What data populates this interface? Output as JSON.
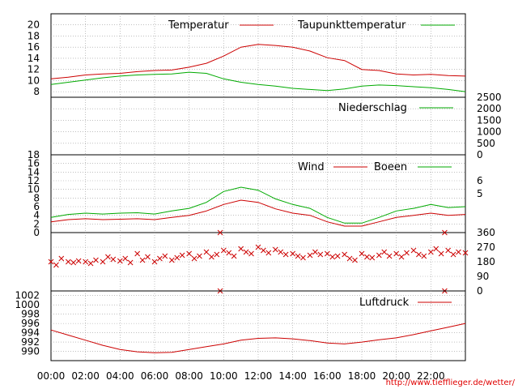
{
  "colors": {
    "primary": "#cc0000",
    "secondary": "#00aa00",
    "grid": "#999999",
    "frame": "#000000"
  },
  "x_tick_labels": [
    "00:00",
    "02:00",
    "04:00",
    "06:00",
    "08:00",
    "10:00",
    "12:00",
    "14:00",
    "16:00",
    "18:00",
    "20:00",
    "22:00"
  ],
  "url": "http://www.tiefflieger.de/wetter/",
  "chart_data": [
    {
      "type": "line",
      "x_range_hours": [
        0,
        24
      ],
      "ylim": [
        7,
        22
      ],
      "y_ticks": [
        8,
        10,
        12,
        14,
        16,
        18,
        20
      ],
      "grid": true,
      "legend": "top",
      "series": [
        {
          "name": "Temperatur",
          "color": "#cc0000",
          "x": [
            0,
            1,
            2,
            3,
            4,
            5,
            6,
            7,
            8,
            9,
            10,
            11,
            12,
            13,
            14,
            15,
            16,
            17,
            18,
            19,
            20,
            21,
            22,
            23,
            24
          ],
          "values": [
            10.3,
            10.6,
            11.0,
            11.2,
            11.3,
            11.6,
            11.8,
            11.9,
            12.4,
            13.1,
            14.4,
            16.0,
            16.5,
            16.3,
            16.0,
            15.3,
            14.1,
            13.6,
            12.0,
            11.8,
            11.2,
            11.0,
            11.1,
            10.9,
            10.8
          ]
        },
        {
          "name": "Taupunkttemperatur",
          "color": "#00aa00",
          "x": [
            0,
            1,
            2,
            3,
            4,
            5,
            6,
            7,
            8,
            9,
            10,
            11,
            12,
            13,
            14,
            15,
            16,
            17,
            18,
            19,
            20,
            21,
            22,
            23,
            24
          ],
          "values": [
            9.3,
            9.7,
            10.1,
            10.5,
            10.8,
            11.0,
            11.1,
            11.2,
            11.5,
            11.3,
            10.3,
            9.7,
            9.3,
            9.0,
            8.6,
            8.4,
            8.2,
            8.5,
            9.0,
            9.2,
            9.1,
            8.9,
            8.7,
            8.4,
            8.0
          ]
        }
      ]
    },
    {
      "type": "line",
      "x_range_hours": [
        0,
        24
      ],
      "ylim": [
        0,
        2500
      ],
      "y_ticks": [
        0,
        500,
        1000,
        1500,
        2000,
        2500
      ],
      "grid": true,
      "legend": "top-right",
      "series": [
        {
          "name": "Niederschlag",
          "color": "#00aa00",
          "x": [
            0,
            24
          ],
          "values": [
            0,
            0
          ]
        }
      ]
    },
    {
      "type": "line",
      "x_range_hours": [
        0,
        24
      ],
      "ylim": [
        0,
        18
      ],
      "y_ticks": [
        0,
        2,
        4,
        6,
        8,
        10,
        12,
        14,
        16,
        18
      ],
      "right_ticks": [
        "5",
        "6"
      ],
      "grid": true,
      "legend": "top-right",
      "series": [
        {
          "name": "Wind",
          "color": "#cc0000",
          "x": [
            0,
            1,
            2,
            3,
            4,
            5,
            6,
            7,
            8,
            9,
            10,
            11,
            12,
            13,
            14,
            15,
            16,
            17,
            18,
            19,
            20,
            21,
            22,
            23,
            24
          ],
          "values": [
            2.5,
            3.0,
            3.2,
            3.0,
            3.1,
            3.2,
            3.0,
            3.5,
            4.0,
            5.0,
            6.5,
            7.5,
            7.0,
            5.5,
            4.5,
            4.0,
            2.5,
            1.5,
            1.5,
            2.5,
            3.5,
            4.0,
            4.5,
            4.0,
            4.2
          ]
        },
        {
          "name": "Boeen",
          "color": "#00aa00",
          "x": [
            0,
            1,
            2,
            3,
            4,
            5,
            6,
            7,
            8,
            9,
            10,
            11,
            12,
            13,
            14,
            15,
            16,
            17,
            18,
            19,
            20,
            21,
            22,
            23,
            24
          ],
          "values": [
            3.5,
            4.2,
            4.5,
            4.3,
            4.5,
            4.6,
            4.3,
            5.0,
            5.6,
            7.0,
            9.5,
            10.5,
            9.8,
            7.8,
            6.5,
            5.6,
            3.5,
            2.2,
            2.2,
            3.5,
            5.0,
            5.6,
            6.5,
            5.8,
            6.0
          ]
        }
      ]
    },
    {
      "type": "scatter",
      "x_range_hours": [
        0,
        24
      ],
      "ylim": [
        0,
        360
      ],
      "y_ticks": [
        0,
        90,
        180,
        270,
        360
      ],
      "grid": true,
      "series": [
        {
          "color": "#cc0000",
          "x": [
            0,
            0.3,
            0.6,
            1,
            1.3,
            1.6,
            2,
            2.3,
            2.6,
            3,
            3.3,
            3.6,
            4,
            4.3,
            4.6,
            5,
            5.3,
            5.6,
            6,
            6.3,
            6.6,
            7,
            7.3,
            7.6,
            8,
            8.3,
            8.6,
            9,
            9.3,
            9.6,
            10,
            10.3,
            10.6,
            11,
            11.3,
            11.6,
            12,
            12.3,
            12.6,
            13,
            13.3,
            13.6,
            14,
            14.3,
            14.6,
            15,
            15.3,
            15.6,
            16,
            16.3,
            16.6,
            17,
            17.3,
            17.6,
            18,
            18.3,
            18.6,
            19,
            19.3,
            19.6,
            20,
            20.3,
            20.6,
            21,
            21.3,
            21.6,
            22,
            22.3,
            22.6,
            23,
            23.3,
            23.6,
            24
          ],
          "values": [
            180,
            160,
            200,
            180,
            175,
            185,
            180,
            170,
            190,
            180,
            210,
            195,
            185,
            200,
            175,
            230,
            190,
            210,
            180,
            200,
            215,
            190,
            205,
            220,
            230,
            200,
            215,
            240,
            210,
            225,
            250,
            235,
            215,
            260,
            240,
            230,
            270,
            250,
            235,
            255,
            240,
            225,
            230,
            215,
            205,
            220,
            240,
            225,
            230,
            210,
            215,
            225,
            200,
            190,
            230,
            210,
            205,
            220,
            240,
            215,
            230,
            210,
            235,
            250,
            225,
            215,
            240,
            260,
            230,
            250,
            225,
            240,
            235
          ]
        },
        {
          "color": "#cc0000",
          "x": [
            9.8,
            9.8,
            22.8,
            22.8
          ],
          "values": [
            360,
            0,
            360,
            0
          ]
        }
      ]
    },
    {
      "type": "line",
      "x_range_hours": [
        0,
        24
      ],
      "ylim": [
        988,
        1003
      ],
      "y_ticks": [
        990,
        992,
        994,
        996,
        998,
        1000,
        1002
      ],
      "grid": true,
      "legend": "top-right",
      "series": [
        {
          "name": "Luftdruck",
          "color": "#cc0000",
          "x": [
            0,
            1,
            2,
            3,
            4,
            5,
            6,
            7,
            8,
            9,
            10,
            11,
            12,
            13,
            14,
            15,
            16,
            17,
            18,
            19,
            20,
            21,
            22,
            23,
            24
          ],
          "values": [
            994.6,
            993.5,
            992.4,
            991.3,
            990.4,
            989.9,
            989.7,
            989.8,
            990.4,
            991.0,
            991.6,
            992.4,
            992.8,
            992.9,
            992.7,
            992.3,
            991.8,
            991.6,
            992.0,
            992.5,
            992.9,
            993.6,
            994.4,
            995.2,
            996.0
          ]
        }
      ]
    }
  ],
  "labels": {
    "temp_legend_1": "Temperatur",
    "temp_legend_2": "Taupunkttemperatur",
    "rain_legend": "Niederschlag",
    "wind_legend_1": "Wind",
    "wind_legend_2": "Boeen",
    "pressure_legend": "Luftdruck"
  }
}
